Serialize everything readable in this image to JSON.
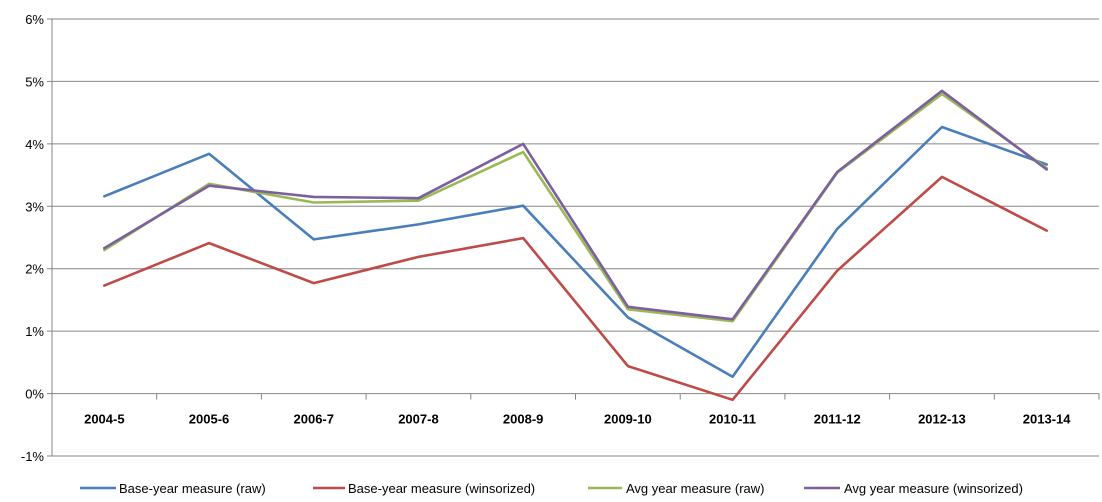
{
  "chart_data": {
    "type": "line",
    "title": "",
    "xlabel": "",
    "ylabel": "",
    "categories": [
      "2004-5",
      "2005-6",
      "2006-7",
      "2007-8",
      "2008-9",
      "2009-10",
      "2010-11",
      "2011-12",
      "2012-13",
      "2013-14"
    ],
    "ylim": [
      -1,
      6
    ],
    "yticks": [
      "6%",
      "5%",
      "4%",
      "3%",
      "2%",
      "1%",
      "0%",
      "-1%"
    ],
    "ytick_values": [
      6,
      5,
      4,
      3,
      2,
      1,
      0,
      -1
    ],
    "grid": true,
    "legend_position": "bottom",
    "series": [
      {
        "name": "Base-year measure (raw)",
        "color": "#4a7ebb",
        "values": [
          3.16,
          3.84,
          2.47,
          2.71,
          3.01,
          1.22,
          0.27,
          2.64,
          4.27,
          3.67
        ]
      },
      {
        "name": "Base-year measure (winsorized)",
        "color": "#be4b48",
        "values": [
          1.73,
          2.41,
          1.77,
          2.19,
          2.49,
          0.44,
          -0.1,
          1.97,
          3.47,
          2.61
        ]
      },
      {
        "name": "Avg year measure (raw)",
        "color": "#98b954",
        "values": [
          2.3,
          3.36,
          3.06,
          3.09,
          3.87,
          1.35,
          1.16,
          3.54,
          4.8,
          3.61
        ]
      },
      {
        "name": "Avg year measure (winsorized)",
        "color": "#7d5fa0",
        "values": [
          2.33,
          3.33,
          3.15,
          3.13,
          4.0,
          1.39,
          1.19,
          3.55,
          4.85,
          3.59
        ]
      }
    ]
  }
}
